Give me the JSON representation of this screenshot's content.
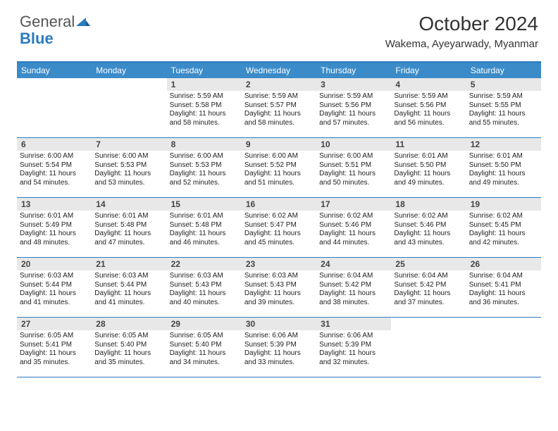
{
  "logo": {
    "part1": "General",
    "part2": "Blue"
  },
  "title": "October 2024",
  "location": "Wakema, Ayeyarwady, Myanmar",
  "colors": {
    "accent": "#3b8bc9",
    "border": "#2b7bbf",
    "dayhead": "#e8e8e8",
    "text": "#222222"
  },
  "day_labels": [
    "Sunday",
    "Monday",
    "Tuesday",
    "Wednesday",
    "Thursday",
    "Friday",
    "Saturday"
  ],
  "weeks": [
    [
      {},
      {},
      {
        "n": "1",
        "rise": "5:59 AM",
        "set": "5:58 PM",
        "dh": "11",
        "dm": "58"
      },
      {
        "n": "2",
        "rise": "5:59 AM",
        "set": "5:57 PM",
        "dh": "11",
        "dm": "58"
      },
      {
        "n": "3",
        "rise": "5:59 AM",
        "set": "5:56 PM",
        "dh": "11",
        "dm": "57"
      },
      {
        "n": "4",
        "rise": "5:59 AM",
        "set": "5:56 PM",
        "dh": "11",
        "dm": "56"
      },
      {
        "n": "5",
        "rise": "5:59 AM",
        "set": "5:55 PM",
        "dh": "11",
        "dm": "55"
      }
    ],
    [
      {
        "n": "6",
        "rise": "6:00 AM",
        "set": "5:54 PM",
        "dh": "11",
        "dm": "54"
      },
      {
        "n": "7",
        "rise": "6:00 AM",
        "set": "5:53 PM",
        "dh": "11",
        "dm": "53"
      },
      {
        "n": "8",
        "rise": "6:00 AM",
        "set": "5:53 PM",
        "dh": "11",
        "dm": "52"
      },
      {
        "n": "9",
        "rise": "6:00 AM",
        "set": "5:52 PM",
        "dh": "11",
        "dm": "51"
      },
      {
        "n": "10",
        "rise": "6:00 AM",
        "set": "5:51 PM",
        "dh": "11",
        "dm": "50"
      },
      {
        "n": "11",
        "rise": "6:01 AM",
        "set": "5:50 PM",
        "dh": "11",
        "dm": "49"
      },
      {
        "n": "12",
        "rise": "6:01 AM",
        "set": "5:50 PM",
        "dh": "11",
        "dm": "49"
      }
    ],
    [
      {
        "n": "13",
        "rise": "6:01 AM",
        "set": "5:49 PM",
        "dh": "11",
        "dm": "48"
      },
      {
        "n": "14",
        "rise": "6:01 AM",
        "set": "5:48 PM",
        "dh": "11",
        "dm": "47"
      },
      {
        "n": "15",
        "rise": "6:01 AM",
        "set": "5:48 PM",
        "dh": "11",
        "dm": "46"
      },
      {
        "n": "16",
        "rise": "6:02 AM",
        "set": "5:47 PM",
        "dh": "11",
        "dm": "45"
      },
      {
        "n": "17",
        "rise": "6:02 AM",
        "set": "5:46 PM",
        "dh": "11",
        "dm": "44"
      },
      {
        "n": "18",
        "rise": "6:02 AM",
        "set": "5:46 PM",
        "dh": "11",
        "dm": "43"
      },
      {
        "n": "19",
        "rise": "6:02 AM",
        "set": "5:45 PM",
        "dh": "11",
        "dm": "42"
      }
    ],
    [
      {
        "n": "20",
        "rise": "6:03 AM",
        "set": "5:44 PM",
        "dh": "11",
        "dm": "41"
      },
      {
        "n": "21",
        "rise": "6:03 AM",
        "set": "5:44 PM",
        "dh": "11",
        "dm": "41"
      },
      {
        "n": "22",
        "rise": "6:03 AM",
        "set": "5:43 PM",
        "dh": "11",
        "dm": "40"
      },
      {
        "n": "23",
        "rise": "6:03 AM",
        "set": "5:43 PM",
        "dh": "11",
        "dm": "39"
      },
      {
        "n": "24",
        "rise": "6:04 AM",
        "set": "5:42 PM",
        "dh": "11",
        "dm": "38"
      },
      {
        "n": "25",
        "rise": "6:04 AM",
        "set": "5:42 PM",
        "dh": "11",
        "dm": "37"
      },
      {
        "n": "26",
        "rise": "6:04 AM",
        "set": "5:41 PM",
        "dh": "11",
        "dm": "36"
      }
    ],
    [
      {
        "n": "27",
        "rise": "6:05 AM",
        "set": "5:41 PM",
        "dh": "11",
        "dm": "35"
      },
      {
        "n": "28",
        "rise": "6:05 AM",
        "set": "5:40 PM",
        "dh": "11",
        "dm": "35"
      },
      {
        "n": "29",
        "rise": "6:05 AM",
        "set": "5:40 PM",
        "dh": "11",
        "dm": "34"
      },
      {
        "n": "30",
        "rise": "6:06 AM",
        "set": "5:39 PM",
        "dh": "11",
        "dm": "33"
      },
      {
        "n": "31",
        "rise": "6:06 AM",
        "set": "5:39 PM",
        "dh": "11",
        "dm": "32"
      },
      {},
      {}
    ]
  ],
  "labels": {
    "sunrise": "Sunrise:",
    "sunset": "Sunset:",
    "daylight": "Daylight:",
    "hours": "hours",
    "and": "and",
    "minutes": "minutes."
  }
}
